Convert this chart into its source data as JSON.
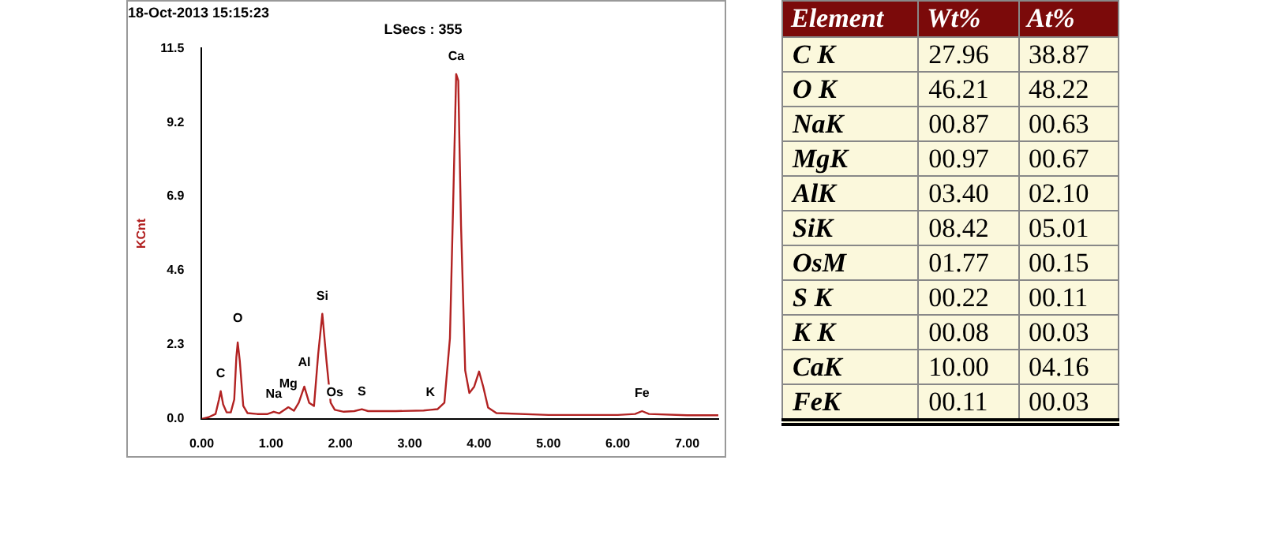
{
  "chart_data": [
    {
      "type": "line",
      "title": "18-Oct-2013 15:15:23",
      "subtitle": "LSecs : 355",
      "ylabel": "KCnt",
      "grid": false,
      "legend": false,
      "marker": "none",
      "line_style": "solid",
      "xlim": [
        0,
        7.45
      ],
      "ylim": [
        0,
        11.5
      ],
      "xticks": [
        {
          "value": 0,
          "label": "0.00"
        },
        {
          "value": 1,
          "label": "1.00"
        },
        {
          "value": 2,
          "label": "2.00"
        },
        {
          "value": 3,
          "label": "3.00"
        },
        {
          "value": 4,
          "label": "4.00"
        },
        {
          "value": 5,
          "label": "5.00"
        },
        {
          "value": 6,
          "label": "6.00"
        },
        {
          "value": 7,
          "label": "7.00"
        }
      ],
      "yticks": [
        {
          "value": 0,
          "label": "0.0"
        },
        2.3,
        4.6,
        6.9,
        9.2,
        11.5
      ],
      "x": [
        0,
        0.1,
        0.2,
        0.25,
        0.275,
        0.31,
        0.36,
        0.42,
        0.47,
        0.5,
        0.52,
        0.55,
        0.6,
        0.66,
        0.8,
        0.95,
        1.04,
        1.12,
        1.25,
        1.33,
        1.4,
        1.48,
        1.55,
        1.62,
        1.68,
        1.74,
        1.8,
        1.86,
        1.92,
        2.05,
        2.2,
        2.31,
        2.4,
        2.8,
        3.2,
        3.3,
        3.4,
        3.5,
        3.58,
        3.63,
        3.67,
        3.7,
        3.74,
        3.8,
        3.86,
        3.93,
        4.0,
        4.06,
        4.13,
        4.25,
        5.0,
        6.0,
        6.25,
        6.35,
        6.45,
        7.0,
        7.45
      ],
      "series": [
        {
          "color": "#b22222",
          "values": [
            0,
            0.05,
            0.15,
            0.6,
            0.86,
            0.45,
            0.2,
            0.2,
            0.6,
            1.9,
            2.37,
            1.8,
            0.4,
            0.18,
            0.15,
            0.15,
            0.22,
            0.17,
            0.36,
            0.25,
            0.5,
            1.0,
            0.5,
            0.4,
            2.0,
            3.26,
            1.8,
            0.5,
            0.28,
            0.22,
            0.24,
            0.3,
            0.24,
            0.24,
            0.26,
            0.28,
            0.3,
            0.5,
            2.5,
            7.0,
            10.7,
            10.5,
            6.0,
            1.5,
            0.8,
            1.0,
            1.47,
            1.0,
            0.35,
            0.18,
            0.12,
            0.12,
            0.15,
            0.24,
            0.15,
            0.11,
            0.11
          ]
        }
      ],
      "annotations": [
        {
          "text": "C",
          "x": 0.275,
          "y": 0.86
        },
        {
          "text": "O",
          "x": 0.52,
          "y": 2.37
        },
        {
          "text": "Na",
          "x": 1.04,
          "y": 0.22
        },
        {
          "text": "Mg",
          "x": 1.25,
          "y": 0.36
        },
        {
          "text": "Al",
          "x": 1.48,
          "y": 1.0
        },
        {
          "text": "Si",
          "x": 1.74,
          "y": 3.26
        },
        {
          "text": "Os",
          "x": 1.92,
          "y": 0.28
        },
        {
          "text": "S",
          "x": 2.31,
          "y": 0.3
        },
        {
          "text": "K",
          "x": 3.3,
          "y": 0.28
        },
        {
          "text": "Ca",
          "x": 3.67,
          "y": 10.7
        },
        {
          "text": "Fe",
          "x": 6.35,
          "y": 0.24
        }
      ]
    },
    {
      "type": "other",
      "legend_title": "Element",
      "categories": [
        "C K",
        "O K",
        "NaK",
        "MgK",
        "AlK",
        "SiK",
        "OsM",
        "S K",
        "K K",
        "CaK",
        "FeK"
      ],
      "series": [
        {
          "name": "Wt%",
          "values": [
            27.96,
            46.21,
            0.87,
            0.97,
            3.4,
            8.42,
            1.77,
            0.22,
            0.08,
            10.0,
            0.11
          ],
          "value_labels": [
            "27.96",
            "46.21",
            "00.87",
            "00.97",
            "03.40",
            "08.42",
            "01.77",
            "00.22",
            "00.08",
            "10.00",
            "00.11"
          ]
        },
        {
          "name": "At%",
          "values": [
            38.87,
            48.22,
            0.63,
            0.67,
            2.1,
            5.01,
            0.15,
            0.11,
            0.03,
            4.16,
            0.03
          ],
          "value_labels": [
            "38.87",
            "48.22",
            "00.63",
            "00.67",
            "02.10",
            "05.01",
            "00.15",
            "00.11",
            "00.03",
            "04.16",
            "00.03"
          ]
        }
      ]
    }
  ]
}
